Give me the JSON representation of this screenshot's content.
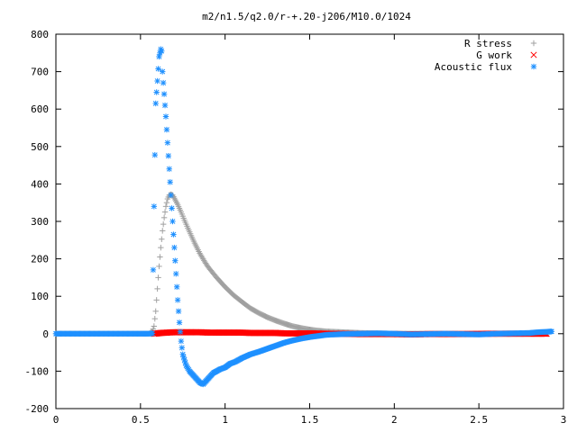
{
  "chart_data": {
    "type": "scatter",
    "title": "m2/n1.5/q2.0/r-+.20-j206/M10.0/1024",
    "xlabel": "",
    "ylabel": "",
    "xlim": [
      0,
      3
    ],
    "ylim": [
      -200,
      800
    ],
    "xticks": [
      0,
      0.5,
      1,
      1.5,
      2,
      2.5,
      3
    ],
    "xtick_labels": [
      "0",
      "0.5",
      "1",
      "1.5",
      "2",
      "2.5",
      "3"
    ],
    "yticks": [
      -200,
      -100,
      0,
      100,
      200,
      300,
      400,
      500,
      600,
      700,
      800
    ],
    "ytick_labels": [
      "-200",
      "-100",
      "0",
      "100",
      "200",
      "300",
      "400",
      "500",
      "600",
      "700",
      "800"
    ],
    "legend_position": "top-right",
    "grid": false,
    "series": [
      {
        "name": "R stress",
        "marker": "plus",
        "color": "#a0a0a0",
        "points": [
          [
            0.0,
            0
          ],
          [
            0.2,
            0
          ],
          [
            0.4,
            0
          ],
          [
            0.55,
            0
          ],
          [
            0.57,
            5
          ],
          [
            0.58,
            20
          ],
          [
            0.59,
            60
          ],
          [
            0.6,
            120
          ],
          [
            0.61,
            180
          ],
          [
            0.62,
            230
          ],
          [
            0.63,
            275
          ],
          [
            0.64,
            310
          ],
          [
            0.65,
            340
          ],
          [
            0.66,
            360
          ],
          [
            0.67,
            370
          ],
          [
            0.68,
            372
          ],
          [
            0.69,
            370
          ],
          [
            0.7,
            362
          ],
          [
            0.72,
            345
          ],
          [
            0.74,
            325
          ],
          [
            0.76,
            303
          ],
          [
            0.78,
            282
          ],
          [
            0.8,
            262
          ],
          [
            0.82,
            242
          ],
          [
            0.85,
            215
          ],
          [
            0.88,
            192
          ],
          [
            0.9,
            178
          ],
          [
            0.95,
            150
          ],
          [
            1.0,
            125
          ],
          [
            1.05,
            103
          ],
          [
            1.1,
            85
          ],
          [
            1.15,
            68
          ],
          [
            1.2,
            55
          ],
          [
            1.25,
            44
          ],
          [
            1.3,
            35
          ],
          [
            1.35,
            27
          ],
          [
            1.4,
            20
          ],
          [
            1.45,
            15
          ],
          [
            1.5,
            11
          ],
          [
            1.55,
            8
          ],
          [
            1.6,
            6
          ],
          [
            1.7,
            4
          ],
          [
            1.8,
            2
          ],
          [
            1.9,
            1
          ],
          [
            2.0,
            0
          ],
          [
            2.2,
            0
          ],
          [
            2.5,
            0
          ],
          [
            2.7,
            0
          ],
          [
            2.9,
            0
          ]
        ]
      },
      {
        "name": "G work",
        "marker": "cross",
        "color": "#ff0000",
        "points": [
          [
            0.58,
            0
          ],
          [
            0.62,
            2
          ],
          [
            0.66,
            3
          ],
          [
            0.7,
            4
          ],
          [
            0.75,
            4
          ],
          [
            0.8,
            4
          ],
          [
            0.85,
            4
          ],
          [
            0.9,
            3
          ],
          [
            0.95,
            3
          ],
          [
            1.0,
            3
          ],
          [
            1.05,
            3
          ],
          [
            1.1,
            3
          ],
          [
            1.15,
            2
          ],
          [
            1.2,
            2
          ],
          [
            1.25,
            2
          ],
          [
            1.3,
            2
          ],
          [
            1.35,
            1
          ],
          [
            1.4,
            1
          ],
          [
            1.5,
            1
          ],
          [
            1.6,
            0
          ],
          [
            1.8,
            -1
          ],
          [
            2.0,
            -1
          ],
          [
            2.1,
            -2
          ],
          [
            2.2,
            -1
          ],
          [
            2.4,
            -1
          ],
          [
            2.6,
            0
          ],
          [
            2.8,
            0
          ],
          [
            2.9,
            0
          ]
        ]
      },
      {
        "name": "Acoustic flux",
        "marker": "star",
        "color": "#1e90ff",
        "points": [
          [
            0.0,
            0
          ],
          [
            0.1,
            0
          ],
          [
            0.2,
            0
          ],
          [
            0.3,
            0
          ],
          [
            0.4,
            0
          ],
          [
            0.5,
            0
          ],
          [
            0.55,
            0
          ],
          [
            0.57,
            1
          ],
          [
            0.58,
            340
          ],
          [
            0.59,
            615
          ],
          [
            0.6,
            675
          ],
          [
            0.61,
            740
          ],
          [
            0.62,
            760
          ],
          [
            0.625,
            755
          ],
          [
            0.63,
            700
          ],
          [
            0.64,
            640
          ],
          [
            0.65,
            580
          ],
          [
            0.66,
            510
          ],
          [
            0.67,
            440
          ],
          [
            0.68,
            370
          ],
          [
            0.69,
            300
          ],
          [
            0.7,
            230
          ],
          [
            0.71,
            160
          ],
          [
            0.72,
            90
          ],
          [
            0.73,
            30
          ],
          [
            0.74,
            -20
          ],
          [
            0.75,
            -55
          ],
          [
            0.77,
            -85
          ],
          [
            0.79,
            -100
          ],
          [
            0.81,
            -110
          ],
          [
            0.83,
            -120
          ],
          [
            0.85,
            -130
          ],
          [
            0.87,
            -135
          ],
          [
            0.89,
            -125
          ],
          [
            0.91,
            -115
          ],
          [
            0.93,
            -105
          ],
          [
            0.95,
            -100
          ],
          [
            0.97,
            -95
          ],
          [
            1.0,
            -90
          ],
          [
            1.03,
            -80
          ],
          [
            1.06,
            -75
          ],
          [
            1.1,
            -65
          ],
          [
            1.15,
            -55
          ],
          [
            1.2,
            -48
          ],
          [
            1.25,
            -40
          ],
          [
            1.3,
            -32
          ],
          [
            1.35,
            -24
          ],
          [
            1.4,
            -18
          ],
          [
            1.45,
            -13
          ],
          [
            1.5,
            -9
          ],
          [
            1.55,
            -6
          ],
          [
            1.6,
            -3
          ],
          [
            1.7,
            -1
          ],
          [
            1.8,
            0
          ],
          [
            1.9,
            1
          ],
          [
            2.0,
            0
          ],
          [
            2.1,
            -2
          ],
          [
            2.2,
            -1
          ],
          [
            2.3,
            0
          ],
          [
            2.4,
            -1
          ],
          [
            2.5,
            -2
          ],
          [
            2.6,
            0
          ],
          [
            2.7,
            1
          ],
          [
            2.8,
            2
          ],
          [
            2.85,
            4
          ],
          [
            2.9,
            5
          ],
          [
            2.93,
            6
          ]
        ]
      }
    ]
  }
}
